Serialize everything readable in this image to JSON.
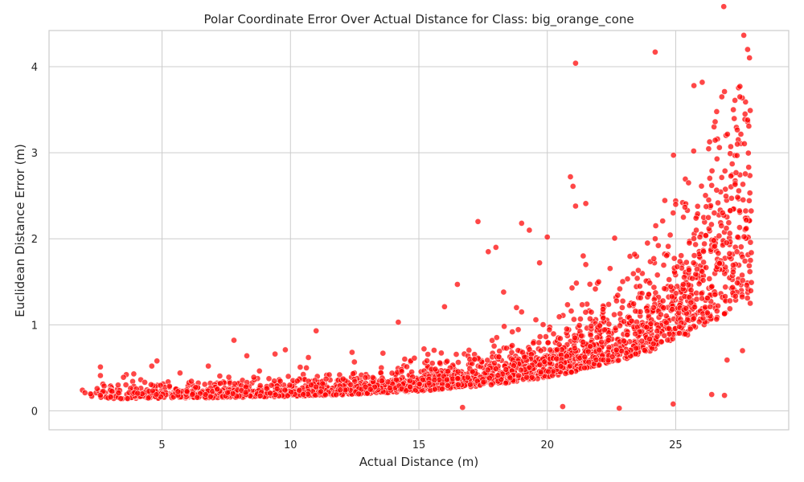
{
  "chart_data": {
    "type": "scatter",
    "title": "Polar Coordinate Error Over Actual Distance for Class: big_orange_cone",
    "xlabel": "Actual Distance (m)",
    "ylabel": "Euclidean Distance Error (m)",
    "xlim": [
      0.6,
      29.4
    ],
    "ylim": [
      -0.22,
      4.42
    ],
    "x_ticks": [
      5,
      10,
      15,
      20,
      25
    ],
    "y_ticks": [
      0,
      1,
      2,
      3,
      4
    ],
    "grid": true,
    "point_color": "#ff0000",
    "series": [
      {
        "name": "",
        "x": [
          1.9,
          2.0,
          2.6,
          4.8,
          4.6,
          7.8,
          9.8,
          11.0,
          14.2,
          17.3,
          18.0,
          17.7,
          19.3,
          19.0,
          19.7,
          20.0,
          20.9,
          21.0,
          21.1,
          21.5,
          21.4,
          21.5,
          22.0,
          23.4,
          24.2,
          23.9,
          25.0,
          25.5,
          25.7,
          26.4,
          26.7,
          26.9,
          27.2,
          27.4,
          27.5,
          27.5,
          27.7,
          27.8,
          27.9,
          21.1,
          24.2,
          27.8,
          26.9,
          27.0,
          22.8,
          20.6,
          16.7,
          16.5,
          18.8,
          12.4,
          13.6,
          8.3,
          9.4,
          3.9,
          3.5,
          2.6,
          5.7,
          6.8,
          10.7,
          15.2,
          16.0,
          19.0,
          18.3,
          24.9,
          26.4,
          27.6,
          27.9,
          26.5,
          25.3,
          24.9,
          25.0,
          25.8
        ],
        "y": [
          0.24,
          0.21,
          0.51,
          0.58,
          0.52,
          0.82,
          0.71,
          0.93,
          1.03,
          2.2,
          1.9,
          1.85,
          2.1,
          2.18,
          1.72,
          2.02,
          2.72,
          2.61,
          2.38,
          2.41,
          1.8,
          1.7,
          1.5,
          1.82,
          2.0,
          1.95,
          2.44,
          2.65,
          3.02,
          2.62,
          3.06,
          3.71,
          2.87,
          3.1,
          3.65,
          3.77,
          3.45,
          3.38,
          3.49,
          4.04,
          4.17,
          4.2,
          0.18,
          0.59,
          0.03,
          0.05,
          0.04,
          1.47,
          1.2,
          0.68,
          0.67,
          0.64,
          0.66,
          0.43,
          0.39,
          0.41,
          0.44,
          0.52,
          0.62,
          0.72,
          1.21,
          1.15,
          1.38,
          0.08,
          0.19,
          0.7,
          1.25,
          2.3,
          2.25,
          2.3,
          2.4,
          2.1
        ]
      }
    ]
  }
}
